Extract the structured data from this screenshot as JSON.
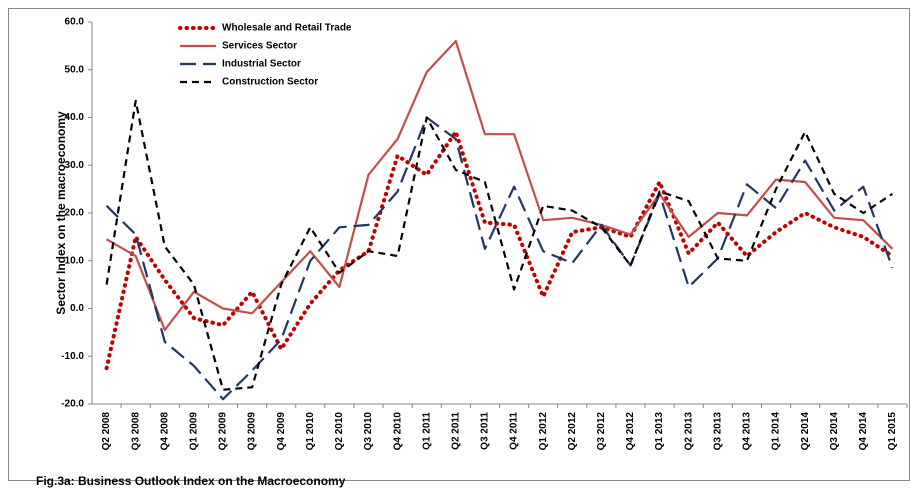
{
  "chart_data": {
    "type": "line",
    "y_label": "Sector  Index on the macroeconomy",
    "caption": "Fig.3a: Business Outlook Index on the Macroeconomy",
    "categories": [
      "Q2 2008",
      "Q3 2008",
      "Q4 2008",
      "Q1 2009",
      "Q2 2009",
      "Q3 2009",
      "Q4 2009",
      "Q1 2010",
      "Q2 2010",
      "Q3 2010",
      "Q4 2010",
      "Q1 2011",
      "Q2 2011",
      "Q3 2011",
      "Q4 2011",
      "Q1 2012",
      "Q2 2012",
      "Q3 2012",
      "Q4 2012",
      "Q1 2013",
      "Q2 2013",
      "Q3 2013",
      "Q4 2013",
      "Q1 2014",
      "Q2 2014",
      "Q3 2014",
      "Q4 2014",
      "Q1 2015"
    ],
    "series": [
      {
        "name": "Wholesale and Retail Trade",
        "color": "#c00000",
        "dash": "dotted",
        "values": [
          -12.5,
          15,
          6,
          -2,
          -3.5,
          3.5,
          -8.5,
          1,
          8,
          12,
          32,
          28,
          37,
          18,
          17.5,
          2.5,
          16,
          17,
          15,
          26.5,
          11.5,
          18,
          11,
          16,
          20,
          17,
          15,
          11
        ]
      },
      {
        "name": "Services Sector",
        "color": "#c0504d",
        "dash": "solid",
        "values": [
          14.5,
          11,
          -4.5,
          3.5,
          0,
          -1,
          5.5,
          12,
          4.5,
          28,
          35.5,
          49.5,
          56,
          36.5,
          36.5,
          18.5,
          19,
          17.5,
          15.5,
          24,
          15,
          20,
          19.5,
          27,
          26.5,
          19,
          18.5,
          12.5
        ]
      },
      {
        "name": "Industrial Sector",
        "color": "#1f3864",
        "dash": "long-dash",
        "values": [
          21.5,
          15.5,
          -7,
          -12,
          -19,
          -13,
          -6.5,
          10,
          17,
          17.5,
          24.5,
          40,
          35.5,
          12.5,
          25.5,
          12,
          9.5,
          17.5,
          9,
          24,
          4.5,
          10.5,
          26,
          21,
          31,
          20.5,
          25.5,
          8.5
        ]
      },
      {
        "name": "Construction Sector",
        "color": "#000000",
        "dash": "dash",
        "values": [
          5,
          43.5,
          13,
          5,
          -17,
          -16.5,
          5,
          17,
          7.5,
          12,
          11,
          40,
          29,
          26.5,
          4,
          21.5,
          20.5,
          17,
          9,
          24.5,
          22.5,
          10.5,
          10,
          25,
          37,
          24,
          20,
          24
        ]
      }
    ],
    "ylim": [
      -20,
      60
    ],
    "yticks": [
      {
        "value": -20,
        "label": "-20.0"
      },
      {
        "value": -10,
        "label": "-10.0"
      },
      {
        "value": 0,
        "label": "0.0"
      },
      {
        "value": 10,
        "label": "10.0"
      },
      {
        "value": 20,
        "label": "20.0"
      },
      {
        "value": 30,
        "label": "30.0"
      },
      {
        "value": 40,
        "label": "40.0"
      },
      {
        "value": 50,
        "label": "50.0"
      },
      {
        "value": 60,
        "label": "60.0"
      }
    ],
    "grid": false,
    "legend": "upper left"
  }
}
